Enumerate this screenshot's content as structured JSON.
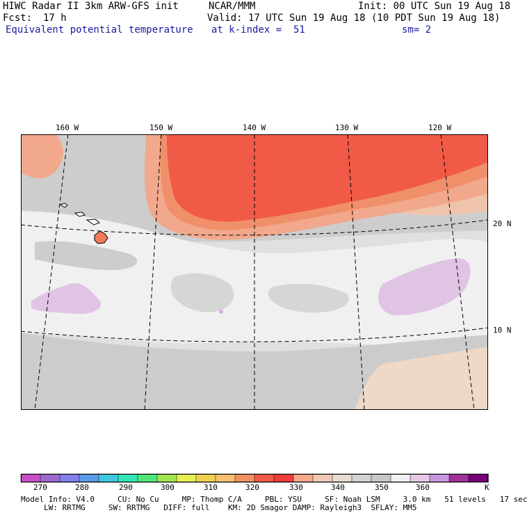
{
  "header": {
    "model": "HIWC Radar II 3km ARW-GFS init",
    "center": "NCAR/MMM",
    "init": "Init: 00 UTC Sun 19 Aug 18",
    "fcst_label": "Fcst:",
    "fcst_value": "17 h",
    "valid": "Valid: 17 UTC Sun 19 Aug 18 (10 PDT Sun 19 Aug 18)",
    "field": "Equivalent potential temperature",
    "level": "at k-index =  51",
    "smoothing": "sm= 2"
  },
  "map": {
    "lon_labels": [
      "160 W",
      "150 W",
      "140 W",
      "130 W",
      "120 W"
    ],
    "lat_labels": [
      "20 N",
      "10 N"
    ]
  },
  "colorbar": {
    "unit": "K",
    "tick_labels": [
      "270",
      "280",
      "290",
      "300",
      "310",
      "320",
      "330",
      "340",
      "350",
      "360"
    ],
    "colors": [
      "#c84ec8",
      "#9a6acc",
      "#7f7fee",
      "#5a9ae6",
      "#40c8e0",
      "#32e6b4",
      "#50e678",
      "#a0e650",
      "#e6f050",
      "#f0d050",
      "#f8c070",
      "#f09060",
      "#f05a46",
      "#f03c3c",
      "#f8a88a",
      "#f0c8b4",
      "#e6dcd2",
      "#d2d2d2",
      "#c8c8c8",
      "#f0f0f0",
      "#e6c8e6",
      "#c896dc",
      "#a0329a",
      "#780078"
    ]
  },
  "footer": {
    "line1": "Model Info: V4.0     CU: No Cu     MP: Thomp C/A     PBL: YSU     SF: Noah LSM     3.0 km   51 levels   17 sec",
    "line2": "     LW: RRTMG     SW: RRTMG   DIFF: full    KM: 2D Smagor DAMP: Rayleigh3  SFLAY: MM5"
  }
}
